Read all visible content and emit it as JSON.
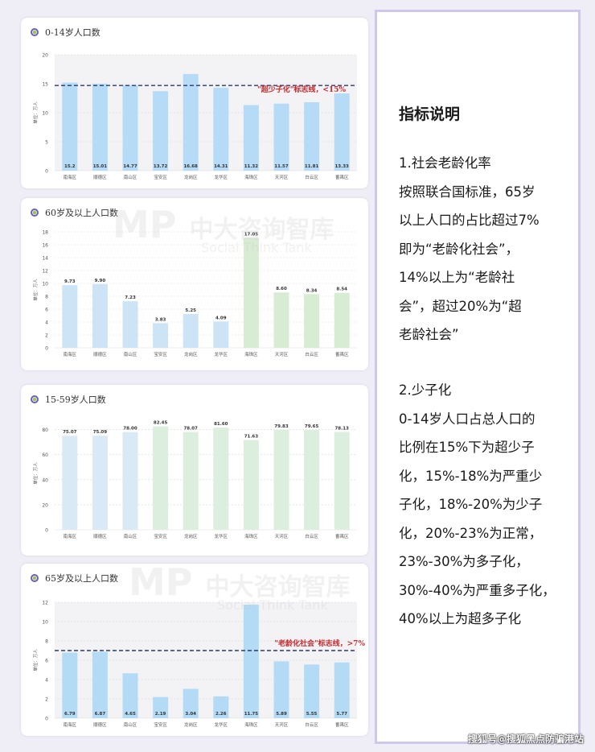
{
  "charts": [
    {
      "title": "0-14岁人口数",
      "ylabel": "单位：万人",
      "tick_labels": [
        "0",
        "5",
        "10",
        "15",
        "20"
      ],
      "ref_label": "\"超少子化\"标志线，<15%",
      "value_labels": [
        "15.2",
        "15.01",
        "14.77",
        "13.72",
        "16.68",
        "14.31",
        "11.32",
        "11.57",
        "11.81",
        "13.33"
      ]
    },
    {
      "title": "60岁及以上人口数",
      "ylabel": "单位：万人",
      "tick_labels": [
        "0",
        "2",
        "4",
        "6",
        "8",
        "10",
        "12",
        "14",
        "16",
        "18"
      ],
      "value_labels": [
        "9.73",
        "9.90",
        "7.23",
        "3.83",
        "5.25",
        "4.09",
        "17.05",
        "8.60",
        "8.34",
        "8.54"
      ]
    },
    {
      "title": "15-59岁人口数",
      "ylabel": "单位：万人",
      "tick_labels": [
        "0",
        "20",
        "40",
        "60",
        "80"
      ],
      "value_labels": [
        "75.07",
        "75.09",
        "78.00",
        "82.45",
        "78.07",
        "81.60",
        "71.63",
        "79.83",
        "79.65",
        "78.13"
      ]
    },
    {
      "title": "65岁及以上人口数",
      "ylabel": "单位：万人",
      "tick_labels": [
        "0",
        "2",
        "4",
        "6",
        "8",
        "10",
        "12"
      ],
      "ref_label": "\"老龄化社会\"标志线，>7%",
      "value_labels": [
        "6.79",
        "6.87",
        "4.65",
        "2.19",
        "3.04",
        "2.26",
        "11.75",
        "5.89",
        "5.55",
        "5.77"
      ]
    }
  ],
  "chart_data": [
    {
      "type": "bar",
      "title": "0-14岁人口数",
      "ylabel": "单位：万人",
      "categories": [
        "南海区",
        "顺德区",
        "南山区",
        "宝安区",
        "龙岗区",
        "龙华区",
        "海珠区",
        "天河区",
        "白云区",
        "番禺区"
      ],
      "values": [
        15.2,
        15.01,
        14.77,
        13.72,
        16.68,
        14.31,
        11.32,
        11.57,
        11.81,
        13.33
      ],
      "ylim": [
        0,
        20
      ],
      "yticks": [
        0,
        5,
        10,
        15,
        20
      ],
      "reference_line": 14.7,
      "bar_colors": [
        "#b6dbf6"
      ],
      "grid": true
    },
    {
      "type": "bar",
      "title": "60岁及以上人口数",
      "ylabel": "单位：万人",
      "categories": [
        "南海区",
        "顺德区",
        "南山区",
        "宝安区",
        "龙岗区",
        "龙华区",
        "海珠区",
        "天河区",
        "白云区",
        "番禺区"
      ],
      "values": [
        9.73,
        9.9,
        7.23,
        3.83,
        5.25,
        4.09,
        17.05,
        8.6,
        8.34,
        8.54
      ],
      "ylim": [
        0,
        18
      ],
      "yticks": [
        0,
        2,
        4,
        6,
        8,
        10,
        12,
        14,
        16,
        18
      ],
      "bar_colors": [
        "#cde4f6",
        "#cde4f6",
        "#cde4f6",
        "#cde4f6",
        "#cde4f6",
        "#cde4f6",
        "#d8ecd3",
        "#d8ecd3",
        "#d8ecd3",
        "#d8ecd3"
      ],
      "grid": true
    },
    {
      "type": "bar",
      "title": "15-59岁人口数",
      "ylabel": "单位：万人",
      "categories": [
        "南海区",
        "顺德区",
        "南山区",
        "宝安区",
        "龙岗区",
        "龙华区",
        "海珠区",
        "天河区",
        "白云区",
        "番禺区"
      ],
      "values": [
        75.07,
        75.09,
        78.0,
        82.45,
        78.07,
        81.6,
        71.63,
        79.83,
        79.65,
        78.13
      ],
      "ylim": [
        0,
        90
      ],
      "yticks": [
        0,
        20,
        40,
        60,
        80
      ],
      "bar_colors": [
        "#d9e9f6",
        "#d9e9f6",
        "#d9e9f6",
        "#dceedd",
        "#dceedd",
        "#dceedd",
        "#dceedd",
        "#dceedd",
        "#dceedd",
        "#dceedd"
      ],
      "grid": true
    },
    {
      "type": "bar",
      "title": "65岁及以上人口数",
      "ylabel": "单位：万人",
      "categories": [
        "南海区",
        "顺德区",
        "南山区",
        "宝安区",
        "龙岗区",
        "龙华区",
        "海珠区",
        "天河区",
        "白云区",
        "番禺区"
      ],
      "values": [
        6.79,
        6.87,
        4.65,
        2.19,
        3.04,
        2.26,
        11.75,
        5.89,
        5.55,
        5.77
      ],
      "ylim": [
        0,
        12
      ],
      "yticks": [
        0,
        2,
        4,
        6,
        8,
        10,
        12
      ],
      "reference_line": 7.0,
      "bar_colors": [
        "#b3dbf5"
      ],
      "grid": true
    }
  ],
  "panel": {
    "title": "指标说明",
    "section1_lines": [
      "1.社会老龄化率",
      "按照联合国标准，65岁",
      "以上人口的占比超过7%",
      "即为“老龄化社会”，",
      "14%以上为“老龄社",
      "会”，超过20%为“超",
      "老龄社会”"
    ],
    "section2_lines": [
      "2.少子化",
      "0-14岁人口占总人口的",
      "比例在15%下为超少子",
      "化，15%-18%为严重少",
      "子化，18%-20%为少子",
      "化，20%-23%为正常，",
      "23%-30%为多子化，",
      "30%-40%为严重多子化，",
      "40%以上为超多子化"
    ]
  },
  "watermark_logo": {
    "brand": "中大咨询智库",
    "en": "Social Think Tank",
    "mark": "MP"
  },
  "footer": "搜狐号@搜狐黑点防骗港站",
  "colors": {
    "ref_line": "#2a3a6a",
    "ref_text": "#c8282d",
    "axis_text": "#555555",
    "label_text": "#333333"
  }
}
